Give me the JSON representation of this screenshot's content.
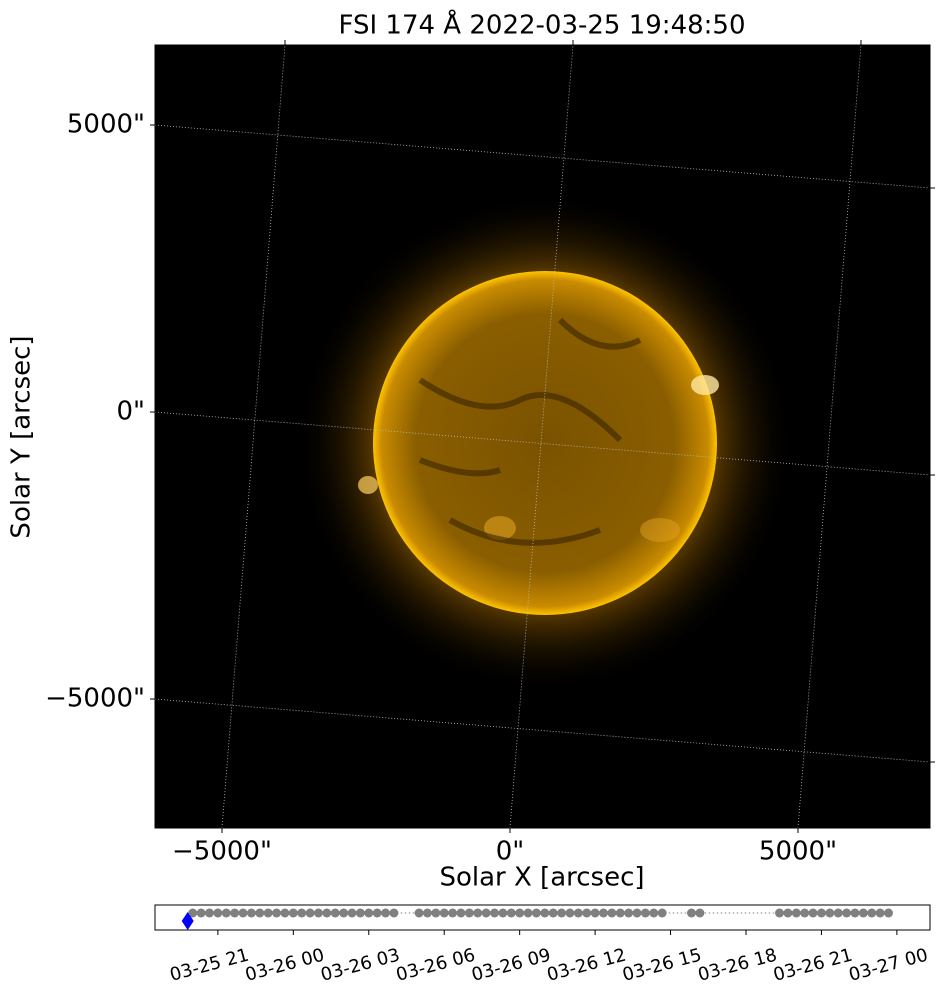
{
  "chart_data": [
    {
      "type": "image",
      "title": "FSI 174 Å 2022-03-25 19:48:50",
      "xlabel": "Solar X [arcsec]",
      "ylabel": "Solar Y [arcsec]",
      "xlim": [
        -6163,
        7292
      ],
      "ylim": [
        -7247,
        6394
      ],
      "xticks": [
        {
          "value": -5000,
          "label": "−5000\""
        },
        {
          "value": 0,
          "label": "0\""
        },
        {
          "value": 5000,
          "label": "5000\""
        }
      ],
      "yticks": [
        {
          "value": -5000,
          "label": "−5000\""
        },
        {
          "value": 0,
          "label": "0\""
        },
        {
          "value": 5000,
          "label": "5000\""
        }
      ],
      "grid": true
    },
    {
      "type": "timeline",
      "xlim": [
        "03-25 18:30",
        "03-27 01:19"
      ],
      "xticks": [
        "03-25 21",
        "03-26 00",
        "03-26 03",
        "03-26 06",
        "03-26 09",
        "03-26 12",
        "03-26 15",
        "03-26 18",
        "03-26 21",
        "03-27 00"
      ],
      "color": "#808080",
      "x": [
        "03-25 20:00",
        "03-25 20:20",
        "03-25 20:40",
        "03-25 21:00",
        "03-25 21:20",
        "03-25 21:40",
        "03-25 22:00",
        "03-25 22:20",
        "03-25 22:40",
        "03-25 23:00",
        "03-25 23:20",
        "03-25 23:40",
        "03-26 00:00",
        "03-26 00:20",
        "03-26 00:40",
        "03-26 01:00",
        "03-26 01:20",
        "03-26 01:40",
        "03-26 02:00",
        "03-26 02:20",
        "03-26 02:40",
        "03-26 03:00",
        "03-26 03:20",
        "03-26 03:40",
        "03-26 04:00",
        "03-26 05:00",
        "03-26 05:20",
        "03-26 05:40",
        "03-26 06:00",
        "03-26 06:20",
        "03-26 06:40",
        "03-26 07:00",
        "03-26 07:20",
        "03-26 07:40",
        "03-26 08:00",
        "03-26 08:20",
        "03-26 08:40",
        "03-26 09:00",
        "03-26 09:20",
        "03-26 09:40",
        "03-26 10:00",
        "03-26 10:20",
        "03-26 10:40",
        "03-26 11:00",
        "03-26 11:20",
        "03-26 11:40",
        "03-26 12:00",
        "03-26 12:20",
        "03-26 12:40",
        "03-26 13:00",
        "03-26 13:20",
        "03-26 13:40",
        "03-26 14:00",
        "03-26 14:20",
        "03-26 14:40",
        "03-26 15:50",
        "03-26 16:10",
        "03-26 19:20",
        "03-26 19:40",
        "03-26 20:00",
        "03-26 20:20",
        "03-26 20:40",
        "03-26 21:00",
        "03-26 21:20",
        "03-26 21:40",
        "03-26 22:00",
        "03-26 22:20",
        "03-26 22:40",
        "03-26 23:00",
        "03-26 23:20",
        "03-26 23:40"
      ],
      "current": "03-25 19:48",
      "current_color": "#0000ff"
    }
  ]
}
